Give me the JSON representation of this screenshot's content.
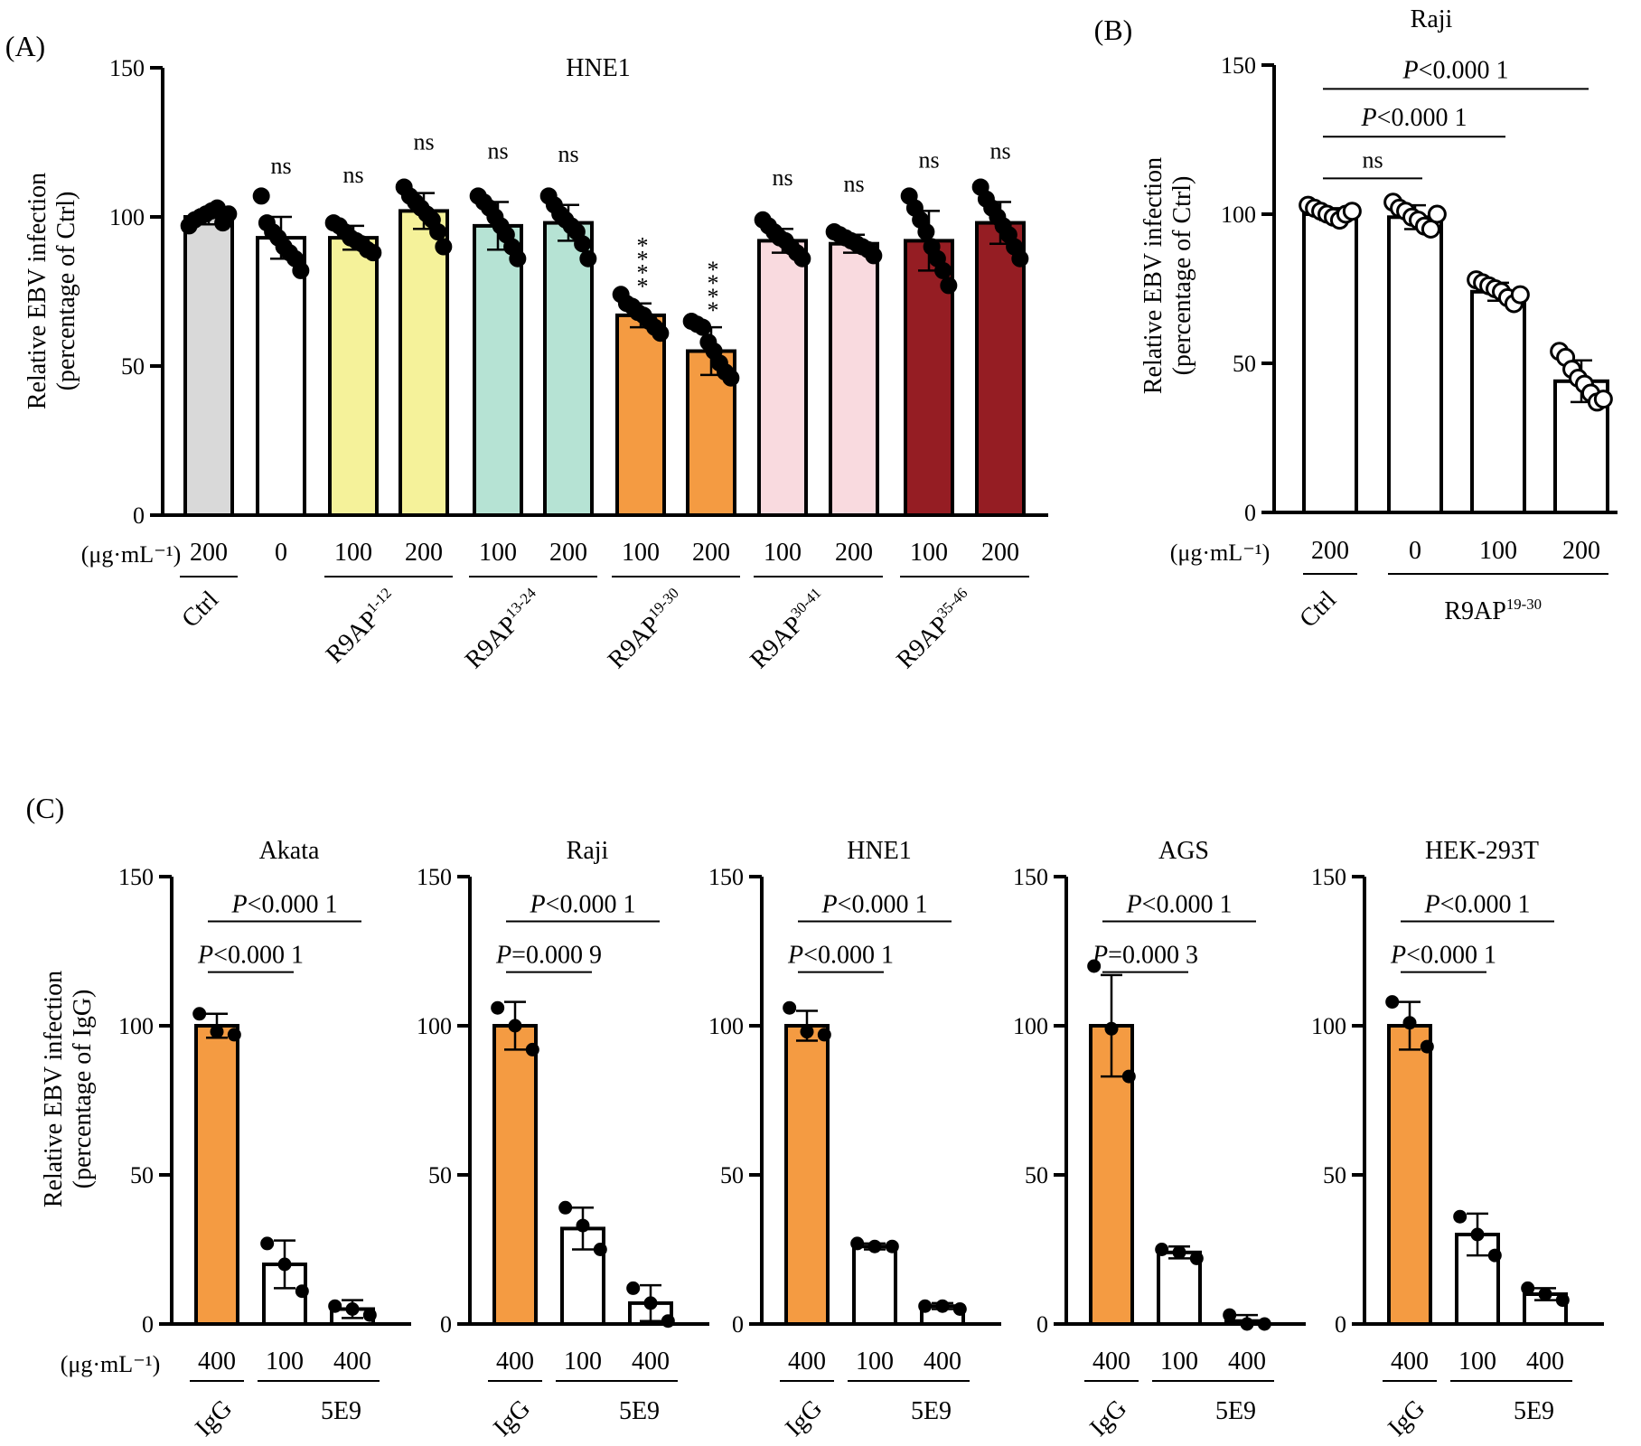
{
  "figure": {
    "unit_label": "(μg·mL⁻¹)",
    "panels": [
      {
        "id": "A",
        "letter": "(A)",
        "title": "HNE1",
        "ylabel": [
          "Relative EBV infection",
          "(percentage of Ctrl)"
        ],
        "ylim": [
          0,
          150
        ],
        "yticks": [
          0,
          50,
          100,
          150
        ],
        "bars": [
          {
            "dose": "200",
            "value": 100,
            "err": 2.5,
            "fill": "#d9d9d9",
            "points": [
              97,
              99,
              100,
              101,
              102,
              103,
              98,
              101
            ],
            "sig": "ns_hidden"
          },
          {
            "dose": "0",
            "value": 93,
            "err": 7,
            "fill": "#ffffff",
            "points": [
              107,
              98,
              95,
              93,
              90,
              88,
              86,
              82
            ],
            "sig": "ns"
          },
          {
            "dose": "100",
            "value": 93,
            "err": 4,
            "fill": "#f5f29a",
            "points": [
              98,
              97,
              95,
              93,
              92,
              91,
              89,
              88
            ],
            "sig": "ns"
          },
          {
            "dose": "200",
            "value": 102,
            "err": 6,
            "fill": "#f5f29a",
            "points": [
              110,
              107,
              105,
              103,
              101,
              99,
              95,
              90
            ],
            "sig": "ns"
          },
          {
            "dose": "100",
            "value": 97,
            "err": 8,
            "fill": "#b6e3d4",
            "points": [
              107,
              105,
              103,
              100,
              97,
              94,
              90,
              86
            ],
            "sig": "ns"
          },
          {
            "dose": "200",
            "value": 98,
            "err": 6,
            "fill": "#b6e3d4",
            "points": [
              107,
              104,
              101,
              99,
              97,
              95,
              91,
              86
            ],
            "sig": "ns"
          },
          {
            "dose": "100",
            "value": 67,
            "err": 4,
            "fill": "#f49b42",
            "points": [
              74,
              71,
              70,
              68,
              67,
              65,
              63,
              61
            ],
            "sig": "****"
          },
          {
            "dose": "200",
            "value": 55,
            "err": 8,
            "fill": "#f49b42",
            "points": [
              65,
              64,
              63,
              58,
              55,
              51,
              48,
              46
            ],
            "sig": "****"
          },
          {
            "dose": "100",
            "value": 92,
            "err": 4,
            "fill": "#f9dadf",
            "points": [
              99,
              97,
              95,
              93,
              92,
              90,
              88,
              86
            ],
            "sig": "ns"
          },
          {
            "dose": "200",
            "value": 91,
            "err": 3,
            "fill": "#f9dadf",
            "points": [
              95,
              94,
              93,
              92,
              91,
              90,
              89,
              87
            ],
            "sig": "ns"
          },
          {
            "dose": "100",
            "value": 92,
            "err": 10,
            "fill": "#951d23",
            "points": [
              107,
              103,
              99,
              95,
              90,
              86,
              82,
              77
            ],
            "sig": "ns"
          },
          {
            "dose": "200",
            "value": 98,
            "err": 7,
            "fill": "#951d23",
            "points": [
              110,
              106,
              103,
              100,
              97,
              94,
              90,
              86
            ],
            "sig": "ns"
          }
        ],
        "groups": [
          {
            "label": "Ctrl",
            "sup": "",
            "from": 0,
            "to": 0
          },
          {
            "label": "R9AP",
            "sup": "1-12",
            "from": 2,
            "to": 3
          },
          {
            "label": "R9AP",
            "sup": "13-24",
            "from": 4,
            "to": 5
          },
          {
            "label": "R9AP",
            "sup": "19-30",
            "from": 6,
            "to": 7
          },
          {
            "label": "R9AP",
            "sup": "30-41",
            "from": 8,
            "to": 9
          },
          {
            "label": "R9AP",
            "sup": "35-46",
            "from": 10,
            "to": 11
          }
        ]
      },
      {
        "id": "B",
        "letter": "(B)",
        "title": "Raji",
        "ylabel": [
          "Relative EBV infection",
          "(percentage of Ctrl)"
        ],
        "ylim": [
          0,
          150
        ],
        "yticks": [
          0,
          50,
          100,
          150
        ],
        "bars": [
          {
            "dose": "200",
            "value": 100,
            "err": 2,
            "fill": "#ffffff",
            "points": [
              103,
              102,
              101,
              100,
              99,
              98,
              100,
              101
            ]
          },
          {
            "dose": "0",
            "value": 99,
            "err": 4,
            "fill": "#ffffff",
            "points": [
              104,
              102,
              101,
              99,
              98,
              96,
              95,
              100
            ]
          },
          {
            "dose": "100",
            "value": 74,
            "err": 3,
            "fill": "#ffffff",
            "points": [
              78,
              77,
              76,
              75,
              74,
              72,
              70,
              73
            ]
          },
          {
            "dose": "200",
            "value": 44,
            "err": 7,
            "fill": "#ffffff",
            "points": [
              54,
              52,
              48,
              45,
              43,
              40,
              37,
              38
            ]
          }
        ],
        "groups": [
          {
            "label": "Ctrl",
            "sup": "",
            "from": 0,
            "to": 0
          },
          {
            "label": "R9AP",
            "sup": "19-30",
            "from": 1,
            "to": 3
          }
        ],
        "brackets": [
          {
            "from": 0,
            "to": 1,
            "text": "ns",
            "y": 112
          },
          {
            "from": 0,
            "to": 2,
            "text": "P<0.000 1",
            "y": 126
          },
          {
            "from": 0,
            "to": 3,
            "text": "P<0.000 1",
            "y": 142
          }
        ]
      }
    ],
    "panel_c": {
      "letter": "(C)",
      "ylabel": [
        "Relative EBV infection",
        "(percentage of IgG)"
      ],
      "ylim": [
        0,
        150
      ],
      "yticks": [
        0,
        50,
        100,
        150
      ],
      "doses": [
        "400",
        "100",
        "400"
      ],
      "groups": [
        "IgG",
        "5E9"
      ],
      "colors": [
        "#f49b42",
        "#ffffff",
        "#ffffff"
      ],
      "subpanels": [
        {
          "title": "Akata",
          "values": [
            100,
            20,
            5
          ],
          "errs": [
            4,
            8,
            3
          ],
          "points": [
            [
              104,
              98,
              97
            ],
            [
              27,
              20,
              11
            ],
            [
              6,
              5,
              3
            ]
          ],
          "brackets": [
            {
              "from": 0,
              "to": 1,
              "text": "P<0.000 1"
            },
            {
              "from": 0,
              "to": 2,
              "text": "P<0.000 1"
            }
          ]
        },
        {
          "title": "Raji",
          "values": [
            100,
            32,
            7
          ],
          "errs": [
            8,
            7,
            6
          ],
          "points": [
            [
              106,
              100,
              92
            ],
            [
              39,
              33,
              25
            ],
            [
              12,
              7,
              1
            ]
          ],
          "brackets": [
            {
              "from": 0,
              "to": 1,
              "text": "P=0.000 9"
            },
            {
              "from": 0,
              "to": 2,
              "text": "P<0.000 1"
            }
          ]
        },
        {
          "title": "HNE1",
          "values": [
            100,
            26,
            6
          ],
          "errs": [
            5,
            1,
            1
          ],
          "points": [
            [
              106,
              98,
              97
            ],
            [
              27,
              26,
              26
            ],
            [
              6,
              6,
              5
            ]
          ],
          "brackets": [
            {
              "from": 0,
              "to": 1,
              "text": "P<0.000 1"
            },
            {
              "from": 0,
              "to": 2,
              "text": "P<0.000 1"
            }
          ]
        },
        {
          "title": "AGS",
          "values": [
            100,
            24,
            1
          ],
          "errs": [
            17,
            2,
            2
          ],
          "points": [
            [
              120,
              99,
              83
            ],
            [
              25,
              24,
              22
            ],
            [
              3,
              0,
              0
            ]
          ],
          "brackets": [
            {
              "from": 0,
              "to": 1,
              "text": "P=0.000 3"
            },
            {
              "from": 0,
              "to": 2,
              "text": "P<0.000 1"
            }
          ]
        },
        {
          "title": "HEK-293T",
          "values": [
            100,
            30,
            10
          ],
          "errs": [
            8,
            7,
            2
          ],
          "points": [
            [
              108,
              101,
              93
            ],
            [
              36,
              30,
              23
            ],
            [
              12,
              10,
              8
            ]
          ],
          "brackets": [
            {
              "from": 0,
              "to": 1,
              "text": "P<0.000 1"
            },
            {
              "from": 0,
              "to": 2,
              "text": "P<0.000 1"
            }
          ]
        }
      ]
    }
  },
  "chart_data": [
    {
      "type": "bar",
      "title": "HNE1",
      "ylabel": "Relative EBV infection (percentage of Ctrl)",
      "ylim": [
        0,
        150
      ],
      "categories": [
        "Ctrl 200",
        "R9AP 0",
        "R9AP1-12 100",
        "R9AP1-12 200",
        "R9AP13-24 100",
        "R9AP13-24 200",
        "R9AP19-30 100",
        "R9AP19-30 200",
        "R9AP30-41 100",
        "R9AP30-41 200",
        "R9AP35-46 100",
        "R9AP35-46 200"
      ],
      "values": [
        100,
        93,
        93,
        102,
        97,
        98,
        67,
        55,
        92,
        91,
        92,
        98
      ]
    },
    {
      "type": "bar",
      "title": "Raji",
      "ylabel": "Relative EBV infection (percentage of Ctrl)",
      "ylim": [
        0,
        150
      ],
      "categories": [
        "Ctrl 200",
        "R9AP19-30 0",
        "R9AP19-30 100",
        "R9AP19-30 200"
      ],
      "values": [
        100,
        99,
        74,
        44
      ]
    },
    {
      "type": "bar",
      "title": "Akata",
      "ylim": [
        0,
        150
      ],
      "categories": [
        "IgG 400",
        "5E9 100",
        "5E9 400"
      ],
      "values": [
        100,
        20,
        5
      ]
    },
    {
      "type": "bar",
      "title": "Raji",
      "ylim": [
        0,
        150
      ],
      "categories": [
        "IgG 400",
        "5E9 100",
        "5E9 400"
      ],
      "values": [
        100,
        32,
        7
      ]
    },
    {
      "type": "bar",
      "title": "HNE1",
      "ylim": [
        0,
        150
      ],
      "categories": [
        "IgG 400",
        "5E9 100",
        "5E9 400"
      ],
      "values": [
        100,
        26,
        6
      ]
    },
    {
      "type": "bar",
      "title": "AGS",
      "ylim": [
        0,
        150
      ],
      "categories": [
        "IgG 400",
        "5E9 100",
        "5E9 400"
      ],
      "values": [
        100,
        24,
        1
      ]
    },
    {
      "type": "bar",
      "title": "HEK-293T",
      "ylim": [
        0,
        150
      ],
      "categories": [
        "IgG 400",
        "5E9 100",
        "5E9 400"
      ],
      "values": [
        100,
        30,
        10
      ]
    }
  ]
}
